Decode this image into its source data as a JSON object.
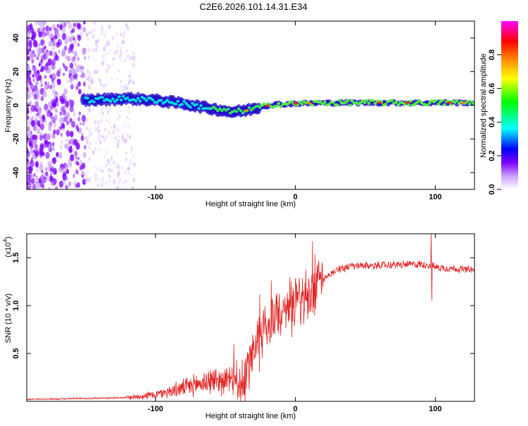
{
  "title": "C2E6.2026.101.14.31.E34",
  "chart_data": [
    {
      "type": "heatmap",
      "name": "spectrogram",
      "xlabel": "Height of straight line (km)",
      "ylabel": "Frequency (Hz)",
      "xlim": [
        -192,
        128
      ],
      "ylim": [
        -50,
        50
      ],
      "x_ticks": [
        -100,
        0,
        100
      ],
      "x_tick_labels": [
        "-100",
        "0",
        "100"
      ],
      "y_ticks": [
        -40,
        -20,
        0,
        20,
        40
      ],
      "y_tick_labels": [
        "-40",
        "-20",
        "0",
        "20",
        "40"
      ],
      "colorbar": {
        "label": "Normalized spectral amplitude",
        "range": [
          0,
          1
        ],
        "ticks": [
          0.0,
          0.2,
          0.4,
          0.6,
          0.8
        ],
        "tick_labels": [
          "0.0",
          "0.2",
          "0.4",
          "0.6",
          "0.8"
        ],
        "colormap": [
          "#ffffff",
          "#7d00ff",
          "#0000ff",
          "#00ffff",
          "#00ff00",
          "#ffff00",
          "#ff8000",
          "#ff0000",
          "#ff00ff"
        ]
      },
      "signal_track": {
        "description_points_x": [
          -150,
          -120,
          -100,
          -80,
          -60,
          -45,
          -35,
          -25,
          -15,
          0,
          30,
          60,
          90,
          128
        ],
        "description_points_freq": [
          3,
          4,
          3,
          1,
          -2,
          -4,
          -3,
          -1,
          0.5,
          1,
          1.5,
          1.5,
          1.5,
          1.5
        ],
        "noise_region_x": [
          -192,
          -115
        ]
      }
    },
    {
      "type": "line",
      "name": "snr",
      "xlabel": "Height of straight line (km)",
      "ylabel": "SNR (10 * v/v)",
      "y_scale_label": "(x10",
      "y_scale_exp": "4",
      "xlim": [
        -192,
        128
      ],
      "ylim": [
        0,
        1.75
      ],
      "x_ticks": [
        -100,
        0,
        100
      ],
      "x_tick_labels": [
        "-100",
        "0",
        "100"
      ],
      "y_ticks": [
        0.5,
        1.0,
        1.5
      ],
      "y_tick_labels": [
        "0.5",
        "1.0",
        "1.5"
      ],
      "series": [
        {
          "name": "SNR",
          "color": "#e02020",
          "envelope_x": [
            -192,
            -150,
            -120,
            -100,
            -80,
            -60,
            -45,
            -40,
            -35,
            -30,
            -25,
            -20,
            -15,
            -10,
            -5,
            0,
            10,
            20,
            30,
            40,
            60,
            80,
            90,
            97,
            100,
            110,
            128
          ],
          "envelope_y": [
            0.02,
            0.03,
            0.04,
            0.07,
            0.14,
            0.22,
            0.22,
            0.12,
            0.3,
            0.55,
            0.72,
            0.8,
            0.86,
            0.93,
            0.98,
            1.02,
            1.1,
            1.28,
            1.38,
            1.41,
            1.42,
            1.43,
            1.43,
            1.42,
            1.4,
            1.39,
            1.37
          ],
          "spike": {
            "x": 97,
            "y_max": 1.75,
            "y_min": 1.05
          }
        }
      ]
    }
  ]
}
